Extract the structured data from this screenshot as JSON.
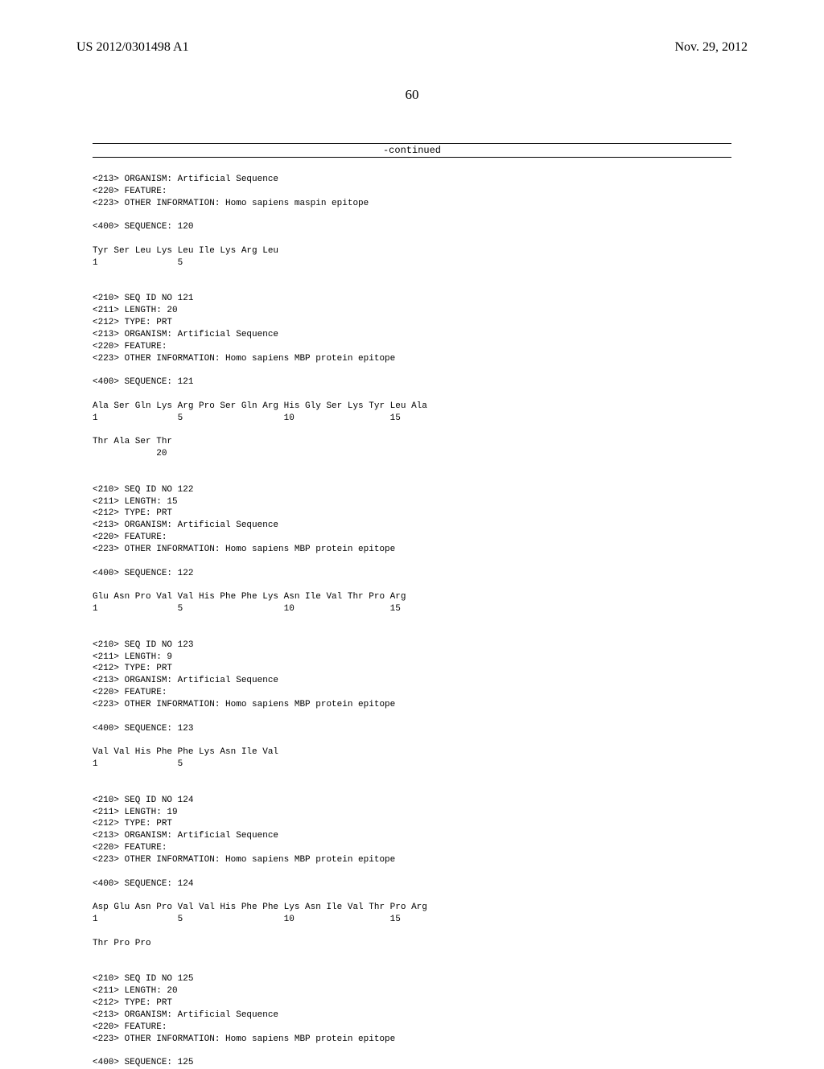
{
  "header": {
    "pub_number": "US 2012/0301498 A1",
    "pub_date": "Nov. 29, 2012"
  },
  "page_number": "60",
  "continued": "-continued",
  "seq120": {
    "header": "<213> ORGANISM: Artificial Sequence\n<220> FEATURE:\n<223> OTHER INFORMATION: Homo sapiens maspin epitope\n\n<400> SEQUENCE: 120",
    "residues": "Tyr Ser Leu Lys Leu Ile Lys Arg Leu",
    "numbers": "1               5"
  },
  "seq121": {
    "header": "<210> SEQ ID NO 121\n<211> LENGTH: 20\n<212> TYPE: PRT\n<213> ORGANISM: Artificial Sequence\n<220> FEATURE:\n<223> OTHER INFORMATION: Homo sapiens MBP protein epitope\n\n<400> SEQUENCE: 121",
    "residues1": "Ala Ser Gln Lys Arg Pro Ser Gln Arg His Gly Ser Lys Tyr Leu Ala",
    "numbers1": "1               5                   10                  15",
    "residues2": "Thr Ala Ser Thr",
    "numbers2": "            20"
  },
  "seq122": {
    "header": "<210> SEQ ID NO 122\n<211> LENGTH: 15\n<212> TYPE: PRT\n<213> ORGANISM: Artificial Sequence\n<220> FEATURE:\n<223> OTHER INFORMATION: Homo sapiens MBP protein epitope\n\n<400> SEQUENCE: 122",
    "residues": "Glu Asn Pro Val Val His Phe Phe Lys Asn Ile Val Thr Pro Arg",
    "numbers": "1               5                   10                  15"
  },
  "seq123": {
    "header": "<210> SEQ ID NO 123\n<211> LENGTH: 9\n<212> TYPE: PRT\n<213> ORGANISM: Artificial Sequence\n<220> FEATURE:\n<223> OTHER INFORMATION: Homo sapiens MBP protein epitope\n\n<400> SEQUENCE: 123",
    "residues": "Val Val His Phe Phe Lys Asn Ile Val",
    "numbers": "1               5"
  },
  "seq124": {
    "header": "<210> SEQ ID NO 124\n<211> LENGTH: 19\n<212> TYPE: PRT\n<213> ORGANISM: Artificial Sequence\n<220> FEATURE:\n<223> OTHER INFORMATION: Homo sapiens MBP protein epitope\n\n<400> SEQUENCE: 124",
    "residues1": "Asp Glu Asn Pro Val Val His Phe Phe Lys Asn Ile Val Thr Pro Arg",
    "numbers1": "1               5                   10                  15",
    "residues2": "Thr Pro Pro"
  },
  "seq125": {
    "header": "<210> SEQ ID NO 125\n<211> LENGTH: 20\n<212> TYPE: PRT\n<213> ORGANISM: Artificial Sequence\n<220> FEATURE:\n<223> OTHER INFORMATION: Homo sapiens MBP protein epitope\n\n<400> SEQUENCE: 125"
  }
}
